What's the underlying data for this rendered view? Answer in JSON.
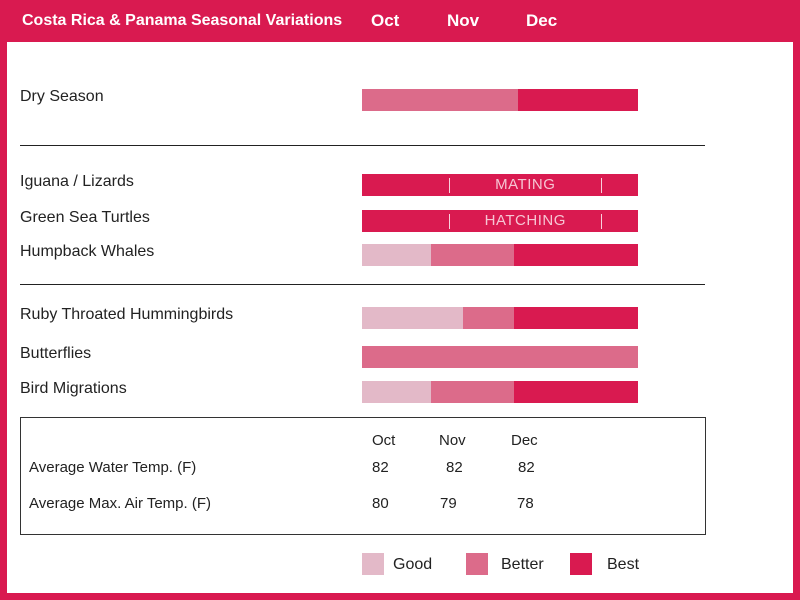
{
  "colors": {
    "frame": "#d91a50",
    "good": "#e3b9c8",
    "better": "#dc6b8a",
    "best": "#d91a50"
  },
  "header": {
    "title": "Costa Rica & Panama Seasonal Variations",
    "months": [
      "Oct",
      "Nov",
      "Dec"
    ]
  },
  "chart_data": {
    "type": "bar",
    "title": "Costa Rica & Panama Seasonal Variations",
    "categories": [
      "Oct",
      "Nov",
      "Dec"
    ],
    "levels": [
      "Good",
      "Better",
      "Best"
    ],
    "groups": [
      {
        "rows": [
          {
            "name": "Dry Season",
            "segments": [
              {
                "start": 0,
                "end": 1.7,
                "level": "Better"
              },
              {
                "start": 1.7,
                "end": 3,
                "level": "Best"
              }
            ]
          }
        ]
      },
      {
        "rows": [
          {
            "name": "Iguana / Lizards",
            "segments": [
              {
                "start": 0,
                "end": 3,
                "level": "Best",
                "note": "MATING",
                "note_start": 0.95,
                "note_end": 2.6
              }
            ]
          },
          {
            "name": "Green Sea Turtles",
            "segments": [
              {
                "start": 0,
                "end": 3,
                "level": "Best",
                "note": "HATCHING",
                "note_start": 0.95,
                "note_end": 2.6
              }
            ]
          },
          {
            "name": "Humpback Whales",
            "segments": [
              {
                "start": 0,
                "end": 0.75,
                "level": "Good"
              },
              {
                "start": 0.75,
                "end": 1.65,
                "level": "Better"
              },
              {
                "start": 1.65,
                "end": 3,
                "level": "Best"
              }
            ]
          }
        ]
      },
      {
        "rows": [
          {
            "name": "Ruby Throated Hummingbirds",
            "segments": [
              {
                "start": 0,
                "end": 1.1,
                "level": "Good"
              },
              {
                "start": 1.1,
                "end": 1.65,
                "level": "Better"
              },
              {
                "start": 1.65,
                "end": 3,
                "level": "Best"
              }
            ]
          },
          {
            "name": "Butterflies",
            "segments": [
              {
                "start": 0,
                "end": 3,
                "level": "Better"
              }
            ]
          },
          {
            "name": "Bird Migrations",
            "segments": [
              {
                "start": 0,
                "end": 0.75,
                "level": "Good"
              },
              {
                "start": 0.75,
                "end": 1.65,
                "level": "Better"
              },
              {
                "start": 1.65,
                "end": 3,
                "level": "Best"
              }
            ]
          }
        ]
      }
    ],
    "temperatures": {
      "months": [
        "Oct",
        "Nov",
        "Dec"
      ],
      "rows": [
        {
          "label": "Average Water Temp. (F)",
          "values": [
            82,
            82,
            82
          ]
        },
        {
          "label": "Average Max. Air Temp. (F)",
          "values": [
            80,
            79,
            78
          ]
        }
      ]
    },
    "legend": [
      "Good",
      "Better",
      "Best"
    ]
  }
}
